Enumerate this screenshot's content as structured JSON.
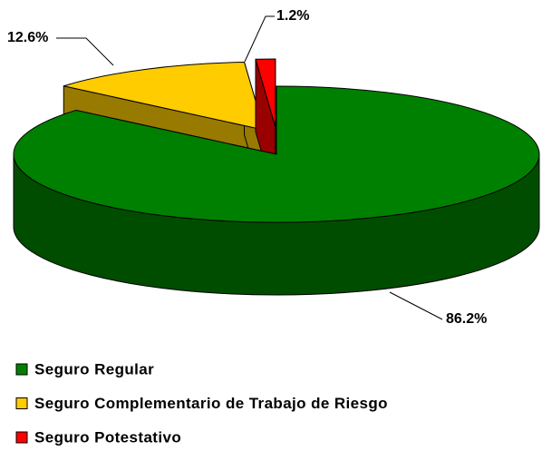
{
  "chart_data": {
    "type": "pie3d",
    "categories": [
      "Seguro Regular",
      "Seguro Complementario de Trabajo de Riesgo",
      "Seguro Potestativo"
    ],
    "values": [
      86.2,
      12.6,
      1.2
    ],
    "value_labels": [
      "86.2%",
      "12.6%",
      "1.2%"
    ],
    "colors": [
      "#008000",
      "#ffcc00",
      "#ff0000"
    ],
    "legend": "bottom"
  }
}
